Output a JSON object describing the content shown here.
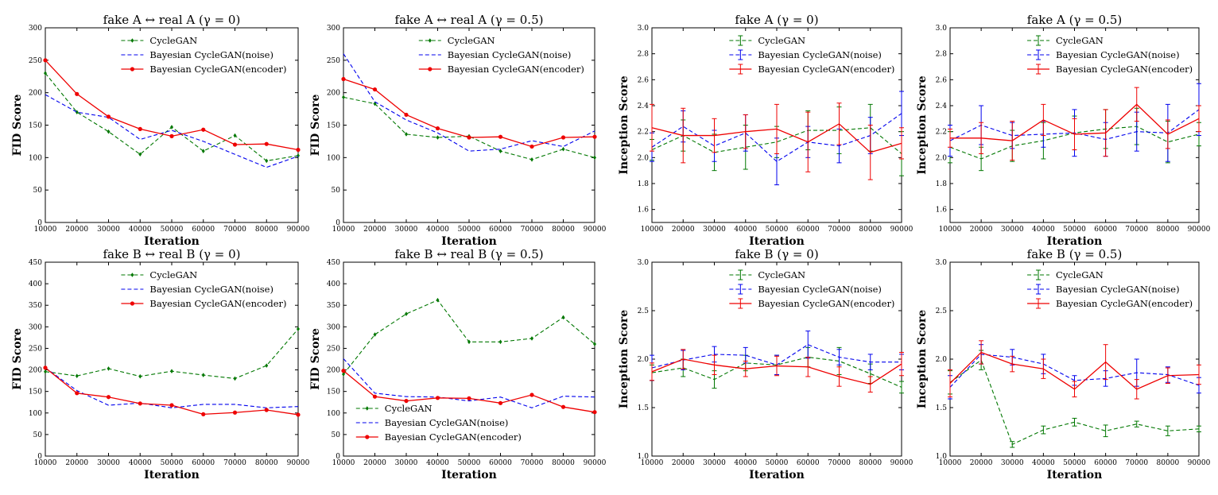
{
  "chart_data": [
    {
      "type": "line",
      "title": "fake A ↔ real A (γ = 0)",
      "xlabel": "Iteration",
      "ylabel": "FID Score",
      "x": [
        10000,
        20000,
        30000,
        40000,
        50000,
        60000,
        70000,
        80000,
        90000
      ],
      "xlim": [
        10000,
        90000
      ],
      "ylim": [
        0,
        300
      ],
      "yticks": [
        0,
        50,
        100,
        150,
        200,
        250,
        300
      ],
      "legend_position": "top-right",
      "error_bars": false,
      "series": [
        {
          "name": "CycleGAN",
          "color": "#007700",
          "style": "dashed",
          "marker": "diamond",
          "values": [
            230,
            170,
            140,
            105,
            147,
            110,
            134,
            95,
            103
          ]
        },
        {
          "name": "Bayesian CycleGAN(noise)",
          "color": "#0000ee",
          "style": "dashed",
          "marker": "none",
          "values": [
            197,
            170,
            162,
            128,
            142,
            125,
            105,
            85,
            102
          ]
        },
        {
          "name": "Bayesian CycleGAN(encoder)",
          "color": "#ee0000",
          "style": "solid",
          "marker": "circle",
          "values": [
            250,
            198,
            163,
            144,
            133,
            143,
            120,
            121,
            112
          ]
        }
      ]
    },
    {
      "type": "line",
      "title": "fake A ↔ real A (γ = 0.5)",
      "xlabel": "Iteration",
      "ylabel": "FID Score",
      "x": [
        10000,
        20000,
        30000,
        40000,
        50000,
        60000,
        70000,
        80000,
        90000
      ],
      "xlim": [
        10000,
        90000
      ],
      "ylim": [
        0,
        300
      ],
      "yticks": [
        0,
        50,
        100,
        150,
        200,
        250,
        300
      ],
      "legend_position": "top-right",
      "error_bars": false,
      "series": [
        {
          "name": "CycleGAN",
          "color": "#007700",
          "style": "dashed",
          "marker": "diamond",
          "values": [
            193,
            183,
            136,
            131,
            133,
            110,
            97,
            113,
            100
          ]
        },
        {
          "name": "Bayesian CycleGAN(noise)",
          "color": "#0000ee",
          "style": "dashed",
          "marker": "none",
          "values": [
            260,
            186,
            158,
            138,
            110,
            113,
            126,
            117,
            141
          ]
        },
        {
          "name": "Bayesian CycleGAN(encoder)",
          "color": "#ee0000",
          "style": "solid",
          "marker": "circle",
          "values": [
            221,
            205,
            166,
            145,
            131,
            132,
            117,
            131,
            132
          ]
        }
      ]
    },
    {
      "type": "line",
      "title": "fake A (γ = 0)",
      "xlabel": "Iteration",
      "ylabel": "Inception Score",
      "x": [
        10000,
        20000,
        30000,
        40000,
        50000,
        60000,
        70000,
        80000,
        90000
      ],
      "xlim": [
        10000,
        90000
      ],
      "ylim": [
        1.5,
        3.0
      ],
      "yticks": [
        1.6,
        1.8,
        2.0,
        2.2,
        2.4,
        2.6,
        2.8,
        3.0
      ],
      "legend_position": "top-center",
      "error_bars": true,
      "series": [
        {
          "name": "CycleGAN",
          "color": "#007700",
          "style": "dashed",
          "marker": "none",
          "values": [
            2.06,
            2.17,
            2.04,
            2.08,
            2.12,
            2.21,
            2.21,
            2.23,
            2.03
          ],
          "errors": [
            0.08,
            0.12,
            0.14,
            0.17,
            0.12,
            0.15,
            0.18,
            0.18,
            0.17
          ]
        },
        {
          "name": "Bayesian CycleGAN(noise)",
          "color": "#0000ee",
          "style": "dashed",
          "marker": "none",
          "values": [
            2.08,
            2.24,
            2.09,
            2.19,
            1.97,
            2.12,
            2.09,
            2.17,
            2.34
          ],
          "errors": [
            0.11,
            0.12,
            0.12,
            0.14,
            0.18,
            0.12,
            0.13,
            0.14,
            0.17
          ]
        },
        {
          "name": "Bayesian CycleGAN(encoder)",
          "color": "#ee0000",
          "style": "solid",
          "marker": "none",
          "values": [
            2.23,
            2.17,
            2.17,
            2.2,
            2.22,
            2.12,
            2.26,
            2.04,
            2.11
          ],
          "errors": [
            0.18,
            0.21,
            0.13,
            0.13,
            0.19,
            0.23,
            0.16,
            0.21,
            0.12
          ]
        }
      ]
    },
    {
      "type": "line",
      "title": "fake A (γ = 0.5)",
      "xlabel": "Iteration",
      "ylabel": "Inception Score",
      "x": [
        10000,
        20000,
        30000,
        40000,
        50000,
        60000,
        70000,
        80000,
        90000
      ],
      "xlim": [
        10000,
        90000
      ],
      "ylim": [
        1.5,
        3.0
      ],
      "yticks": [
        1.6,
        1.8,
        2.0,
        2.2,
        2.4,
        2.6,
        2.8,
        3.0
      ],
      "legend_position": "top-center",
      "error_bars": true,
      "series": [
        {
          "name": "CycleGAN",
          "color": "#007700",
          "style": "dashed",
          "marker": "none",
          "values": [
            2.08,
            1.99,
            2.09,
            2.13,
            2.19,
            2.22,
            2.24,
            2.12,
            2.18
          ],
          "errors": [
            0.12,
            0.09,
            0.12,
            0.14,
            0.13,
            0.15,
            0.14,
            0.16,
            0.09
          ]
        },
        {
          "name": "Bayesian CycleGAN(noise)",
          "color": "#0000ee",
          "style": "dashed",
          "marker": "none",
          "values": [
            2.13,
            2.25,
            2.17,
            2.18,
            2.19,
            2.14,
            2.2,
            2.19,
            2.37
          ],
          "errors": [
            0.12,
            0.15,
            0.1,
            0.1,
            0.18,
            0.13,
            0.15,
            0.22,
            0.2
          ]
        },
        {
          "name": "Bayesian CycleGAN(encoder)",
          "color": "#ee0000",
          "style": "solid",
          "marker": "none",
          "values": [
            2.15,
            2.15,
            2.13,
            2.29,
            2.18,
            2.19,
            2.41,
            2.18,
            2.3
          ],
          "errors": [
            0.07,
            0.12,
            0.15,
            0.12,
            0.12,
            0.18,
            0.13,
            0.11,
            0.1
          ]
        }
      ]
    },
    {
      "type": "line",
      "title": "fake B ↔ real B (γ = 0)",
      "xlabel": "Iteration",
      "ylabel": "FID Score",
      "x": [
        10000,
        20000,
        30000,
        40000,
        50000,
        60000,
        70000,
        80000,
        90000
      ],
      "xlim": [
        10000,
        90000
      ],
      "ylim": [
        0,
        450
      ],
      "yticks": [
        0,
        50,
        100,
        150,
        200,
        250,
        300,
        350,
        400,
        450
      ],
      "legend_position": "top-right",
      "error_bars": false,
      "series": [
        {
          "name": "CycleGAN",
          "color": "#007700",
          "style": "dashed",
          "marker": "diamond",
          "values": [
            196,
            186,
            203,
            185,
            197,
            188,
            180,
            210,
            295
          ]
        },
        {
          "name": "Bayesian CycleGAN(noise)",
          "color": "#0000ee",
          "style": "dashed",
          "marker": "none",
          "values": [
            205,
            152,
            118,
            123,
            112,
            120,
            120,
            112,
            115
          ]
        },
        {
          "name": "Bayesian CycleGAN(encoder)",
          "color": "#ee0000",
          "style": "solid",
          "marker": "circle",
          "values": [
            205,
            146,
            137,
            122,
            118,
            97,
            101,
            107,
            96
          ]
        }
      ]
    },
    {
      "type": "line",
      "title": "fake B ↔ real B (γ = 0.5)",
      "xlabel": "Iteration",
      "ylabel": "FID Score",
      "x": [
        10000,
        20000,
        30000,
        40000,
        50000,
        60000,
        70000,
        80000,
        90000
      ],
      "xlim": [
        10000,
        90000
      ],
      "ylim": [
        0,
        450
      ],
      "yticks": [
        0,
        50,
        100,
        150,
        200,
        250,
        300,
        350,
        400,
        450
      ],
      "legend_position": "bottom-left",
      "error_bars": false,
      "series": [
        {
          "name": "CycleGAN",
          "color": "#007700",
          "style": "dashed",
          "marker": "diamond",
          "values": [
            190,
            282,
            330,
            362,
            265,
            265,
            273,
            322,
            260
          ]
        },
        {
          "name": "Bayesian CycleGAN(noise)",
          "color": "#0000ee",
          "style": "dashed",
          "marker": "none",
          "values": [
            226,
            146,
            138,
            137,
            128,
            137,
            112,
            139,
            137
          ]
        },
        {
          "name": "Bayesian CycleGAN(encoder)",
          "color": "#ee0000",
          "style": "solid",
          "marker": "circle",
          "values": [
            198,
            138,
            128,
            135,
            134,
            123,
            142,
            114,
            102
          ]
        }
      ]
    },
    {
      "type": "line",
      "title": "fake B (γ = 0)",
      "xlabel": "Iteration",
      "ylabel": "Inception Score",
      "x": [
        10000,
        20000,
        30000,
        40000,
        50000,
        60000,
        70000,
        80000,
        90000
      ],
      "xlim": [
        10000,
        90000
      ],
      "ylim": [
        1.0,
        3.0
      ],
      "yticks": [
        1.0,
        1.5,
        2.0,
        2.5,
        3.0
      ],
      "legend_position": "top-center",
      "error_bars": true,
      "series": [
        {
          "name": "CycleGAN",
          "color": "#007700",
          "style": "dashed",
          "marker": "none",
          "values": [
            1.86,
            1.91,
            1.79,
            1.96,
            1.94,
            2.02,
            1.98,
            1.85,
            1.71
          ],
          "errors": [
            0.08,
            0.09,
            0.09,
            0.08,
            0.1,
            0.1,
            0.14,
            0.1,
            0.06
          ]
        },
        {
          "name": "Bayesian CycleGAN(noise)",
          "color": "#0000ee",
          "style": "dashed",
          "marker": "none",
          "values": [
            1.91,
            1.99,
            2.05,
            2.04,
            1.94,
            2.15,
            2.02,
            1.97,
            1.97
          ],
          "errors": [
            0.13,
            0.1,
            0.08,
            0.08,
            0.1,
            0.14,
            0.08,
            0.08,
            0.08
          ]
        },
        {
          "name": "Bayesian CycleGAN(encoder)",
          "color": "#ee0000",
          "style": "solid",
          "marker": "none",
          "values": [
            1.87,
            2.0,
            1.94,
            1.9,
            1.93,
            1.92,
            1.82,
            1.74,
            1.95
          ],
          "errors": [
            0.09,
            0.1,
            0.1,
            0.08,
            0.1,
            0.1,
            0.1,
            0.08,
            0.12
          ]
        }
      ]
    },
    {
      "type": "line",
      "title": "fake B (γ = 0.5)",
      "xlabel": "Iteration",
      "ylabel": "Inception Score",
      "x": [
        10000,
        20000,
        30000,
        40000,
        50000,
        60000,
        70000,
        80000,
        90000
      ],
      "xlim": [
        10000,
        90000
      ],
      "ylim": [
        1.0,
        3.0
      ],
      "yticks": [
        1.0,
        1.5,
        2.0,
        2.5,
        3.0
      ],
      "legend_position": "top-center",
      "error_bars": true,
      "series": [
        {
          "name": "CycleGAN",
          "color": "#007700",
          "style": "dashed",
          "marker": "none",
          "values": [
            1.76,
            1.99,
            1.12,
            1.27,
            1.35,
            1.26,
            1.33,
            1.26,
            1.28
          ],
          "errors": [
            0.12,
            0.1,
            0.03,
            0.04,
            0.04,
            0.06,
            0.03,
            0.05,
            0.03
          ]
        },
        {
          "name": "Bayesian CycleGAN(noise)",
          "color": "#0000ee",
          "style": "dashed",
          "marker": "none",
          "values": [
            1.71,
            2.05,
            2.02,
            1.95,
            1.78,
            1.8,
            1.86,
            1.84,
            1.73
          ],
          "errors": [
            0.12,
            0.1,
            0.08,
            0.1,
            0.05,
            0.08,
            0.14,
            0.08,
            0.08
          ]
        },
        {
          "name": "Bayesian CycleGAN(encoder)",
          "color": "#ee0000",
          "style": "solid",
          "marker": "none",
          "values": [
            1.75,
            2.07,
            1.95,
            1.9,
            1.69,
            1.97,
            1.69,
            1.83,
            1.84
          ],
          "errors": [
            0.14,
            0.12,
            0.08,
            0.1,
            0.08,
            0.18,
            0.1,
            0.08,
            0.1
          ]
        }
      ]
    }
  ]
}
